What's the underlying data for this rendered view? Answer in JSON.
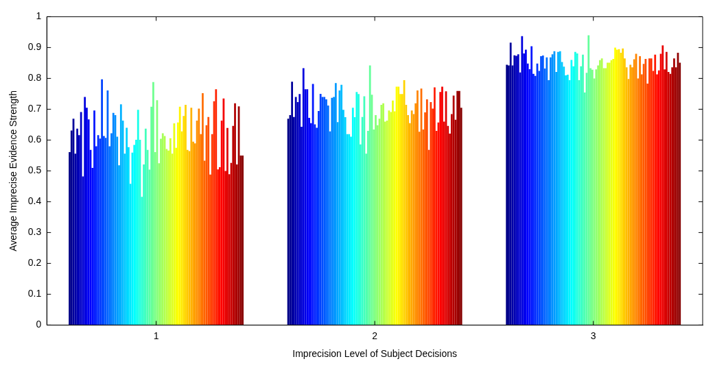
{
  "chart_data": {
    "type": "bar",
    "xlabel": "Imprecision Level of Subject Decisions",
    "ylabel": "Average Imprecise Evidence Strength",
    "categories": [
      "1",
      "2",
      "3"
    ],
    "ylim": [
      0,
      1
    ],
    "yticks": [
      0,
      0.1,
      0.2,
      0.3,
      0.4,
      0.5,
      0.6,
      0.7,
      0.8,
      0.9,
      1
    ],
    "grid": false,
    "legend": false,
    "series": [
      {
        "color": "#000085",
        "values": [
          0.561,
          0.669,
          0.844
        ]
      },
      {
        "color": "#000090",
        "values": [
          0.631,
          0.681,
          0.842
        ]
      },
      {
        "color": "#00009b",
        "values": [
          0.669,
          0.789,
          0.916
        ]
      },
      {
        "color": "#0000a6",
        "values": [
          0.556,
          0.675,
          0.842
        ]
      },
      {
        "color": "#0000b1",
        "values": [
          0.637,
          0.74,
          0.875
        ]
      },
      {
        "color": "#0000bc",
        "values": [
          0.616,
          0.723,
          0.873
        ]
      },
      {
        "color": "#0000c8",
        "values": [
          0.691,
          0.749,
          0.878
        ]
      },
      {
        "color": "#0000d3",
        "values": [
          0.482,
          0.643,
          0.819
        ]
      },
      {
        "color": "#0000de",
        "values": [
          0.74,
          0.833,
          0.937
        ]
      },
      {
        "color": "#0000e9",
        "values": [
          0.705,
          0.765,
          0.881
        ]
      },
      {
        "color": "#0000f4",
        "values": [
          0.667,
          0.765,
          0.893
        ]
      },
      {
        "color": "#0000ff",
        "values": [
          0.568,
          0.672,
          0.848
        ]
      },
      {
        "color": "#000bff",
        "values": [
          0.51,
          0.655,
          0.83
        ]
      },
      {
        "color": "#0016ff",
        "values": [
          0.696,
          0.782,
          0.904
        ]
      },
      {
        "color": "#0021ff",
        "values": [
          0.58,
          0.651,
          0.815
        ]
      },
      {
        "color": "#002cff",
        "values": [
          0.616,
          0.64,
          0.808
        ]
      },
      {
        "color": "#0037ff",
        "values": [
          0.605,
          0.694,
          0.848
        ]
      },
      {
        "color": "#0043ff",
        "values": [
          0.797,
          0.75,
          0.824
        ]
      },
      {
        "color": "#004eff",
        "values": [
          0.613,
          0.74,
          0.872
        ]
      },
      {
        "color": "#0059ff",
        "values": [
          0.607,
          0.74,
          0.874
        ]
      },
      {
        "color": "#0064ff",
        "values": [
          0.761,
          0.732,
          0.832
        ]
      },
      {
        "color": "#006fff",
        "values": [
          0.58,
          0.712,
          0.868
        ]
      },
      {
        "color": "#007aff",
        "values": [
          0.622,
          0.628,
          0.794
        ]
      },
      {
        "color": "#0085ff",
        "values": [
          0.688,
          0.737,
          0.868
        ]
      },
      {
        "color": "#0090ff",
        "values": [
          0.681,
          0.74,
          0.878
        ]
      },
      {
        "color": "#009bff",
        "values": [
          0.611,
          0.785,
          0.888
        ]
      },
      {
        "color": "#00a6ff",
        "values": [
          0.518,
          0.658,
          0.821
        ]
      },
      {
        "color": "#00b1ff",
        "values": [
          0.716,
          0.761,
          0.886
        ]
      },
      {
        "color": "#00bcff",
        "values": [
          0.663,
          0.779,
          0.888
        ]
      },
      {
        "color": "#00c8ff",
        "values": [
          0.556,
          0.698,
          0.853
        ]
      },
      {
        "color": "#00d3ff",
        "values": [
          0.64,
          0.674,
          0.838
        ]
      },
      {
        "color": "#00deff",
        "values": [
          0.577,
          0.619,
          0.81
        ]
      },
      {
        "color": "#00e9ff",
        "values": [
          0.458,
          0.619,
          0.812
        ]
      },
      {
        "color": "#00f4ff",
        "values": [
          0.559,
          0.611,
          0.794
        ]
      },
      {
        "color": "#00ffff",
        "values": [
          0.584,
          0.705,
          0.86
        ]
      },
      {
        "color": "#0bfff4",
        "values": [
          0.601,
          0.674,
          0.839
        ]
      },
      {
        "color": "#16ffe9",
        "values": [
          0.698,
          0.756,
          0.886
        ]
      },
      {
        "color": "#21ffde",
        "values": [
          0.601,
          0.749,
          0.881
        ]
      },
      {
        "color": "#2cffd3",
        "values": [
          0.416,
          0.586,
          0.794
        ]
      },
      {
        "color": "#37ffc8",
        "values": [
          0.521,
          0.675,
          0.839
        ]
      },
      {
        "color": "#43ffbc",
        "values": [
          0.637,
          0.742,
          0.877
        ]
      },
      {
        "color": "#4effb1",
        "values": [
          0.568,
          0.556,
          0.754
        ]
      },
      {
        "color": "#59ffa6",
        "values": [
          0.504,
          0.63,
          0.818
        ]
      },
      {
        "color": "#64ff9b",
        "values": [
          0.708,
          0.842,
          0.94
        ]
      },
      {
        "color": "#6fff90",
        "values": [
          0.788,
          0.747,
          0.833
        ]
      },
      {
        "color": "#7aff85",
        "values": [
          0.561,
          0.634,
          0.828
        ]
      },
      {
        "color": "#85ff7a",
        "values": [
          0.729,
          0.681,
          0.8
        ]
      },
      {
        "color": "#90ff6f",
        "values": [
          0.525,
          0.648,
          0.829
        ]
      },
      {
        "color": "#9bff64",
        "values": [
          0.604,
          0.669,
          0.842
        ]
      },
      {
        "color": "#a6ff59",
        "values": [
          0.622,
          0.714,
          0.859
        ]
      },
      {
        "color": "#b1ff4e",
        "values": [
          0.613,
          0.719,
          0.865
        ]
      },
      {
        "color": "#bcff43",
        "values": [
          0.571,
          0.66,
          0.833
        ]
      },
      {
        "color": "#c8ff37",
        "values": [
          0.566,
          0.663,
          0.833
        ]
      },
      {
        "color": "#d3ff2c",
        "values": [
          0.606,
          0.696,
          0.851
        ]
      },
      {
        "color": "#deff21",
        "values": [
          0.556,
          0.691,
          0.851
        ]
      },
      {
        "color": "#e9ff16",
        "values": [
          0.654,
          0.728,
          0.859
        ]
      },
      {
        "color": "#f4ff0b",
        "values": [
          0.575,
          0.693,
          0.863
        ]
      },
      {
        "color": "#ffff00",
        "values": [
          0.657,
          0.773,
          0.9
        ]
      },
      {
        "color": "#fff400",
        "values": [
          0.708,
          0.773,
          0.893
        ]
      },
      {
        "color": "#ffe900",
        "values": [
          0.628,
          0.749,
          0.895
        ]
      },
      {
        "color": "#ffde00",
        "values": [
          0.678,
          0.749,
          0.883
        ]
      },
      {
        "color": "#ffd300",
        "values": [
          0.714,
          0.794,
          0.897
        ]
      },
      {
        "color": "#ffc800",
        "values": [
          0.568,
          0.714,
          0.865
        ]
      },
      {
        "color": "#ffbc00",
        "values": [
          0.564,
          0.681,
          0.836
        ]
      },
      {
        "color": "#ffb100",
        "values": [
          0.705,
          0.655,
          0.798
        ]
      },
      {
        "color": "#ffa600",
        "values": [
          0.595,
          0.696,
          0.844
        ]
      },
      {
        "color": "#ff9b00",
        "values": [
          0.589,
          0.684,
          0.836
        ]
      },
      {
        "color": "#ff9000",
        "values": [
          0.663,
          0.719,
          0.862
        ]
      },
      {
        "color": "#ff8500",
        "values": [
          0.702,
          0.761,
          0.88
        ]
      },
      {
        "color": "#ff7a00",
        "values": [
          0.619,
          0.627,
          0.8
        ]
      },
      {
        "color": "#ff6f00",
        "values": [
          0.752,
          0.767,
          0.872
        ]
      },
      {
        "color": "#ff6400",
        "values": [
          0.533,
          0.634,
          0.813
        ]
      },
      {
        "color": "#ff5900",
        "values": [
          0.648,
          0.69,
          0.847
        ]
      },
      {
        "color": "#ff4e00",
        "values": [
          0.675,
          0.732,
          0.863
        ]
      },
      {
        "color": "#ff4300",
        "values": [
          0.488,
          0.568,
          0.783
        ]
      },
      {
        "color": "#ff3700",
        "values": [
          0.619,
          0.723,
          0.865
        ]
      },
      {
        "color": "#ff2c00",
        "values": [
          0.726,
          0.702,
          0.865
        ]
      },
      {
        "color": "#ff2100",
        "values": [
          0.765,
          0.771,
          0.824
        ]
      },
      {
        "color": "#ff1600",
        "values": [
          0.505,
          0.63,
          0.877
        ]
      },
      {
        "color": "#ff0b00",
        "values": [
          0.512,
          0.657,
          0.813
        ]
      },
      {
        "color": "#ff0000",
        "values": [
          0.663,
          0.756,
          0.826
        ]
      },
      {
        "color": "#f40000",
        "values": [
          0.735,
          0.773,
          0.88
        ]
      },
      {
        "color": "#e90000",
        "values": [
          0.5,
          0.66,
          0.907
        ]
      },
      {
        "color": "#de0000",
        "values": [
          0.639,
          0.758,
          0.829
        ]
      },
      {
        "color": "#d30000",
        "values": [
          0.489,
          0.646,
          0.886
        ]
      },
      {
        "color": "#c80000",
        "values": [
          0.526,
          0.621,
          0.821
        ]
      },
      {
        "color": "#bc0000",
        "values": [
          0.646,
          0.684,
          0.815
        ]
      },
      {
        "color": "#b10000",
        "values": [
          0.719,
          0.744,
          0.836
        ]
      },
      {
        "color": "#a60000",
        "values": [
          0.521,
          0.666,
          0.865
        ]
      },
      {
        "color": "#9b0000",
        "values": [
          0.709,
          0.759,
          0.836
        ]
      },
      {
        "color": "#900000",
        "values": [
          0.55,
          0.759,
          0.883
        ]
      },
      {
        "color": "#850000",
        "values": [
          0.55,
          0.705,
          0.851
        ]
      }
    ]
  }
}
